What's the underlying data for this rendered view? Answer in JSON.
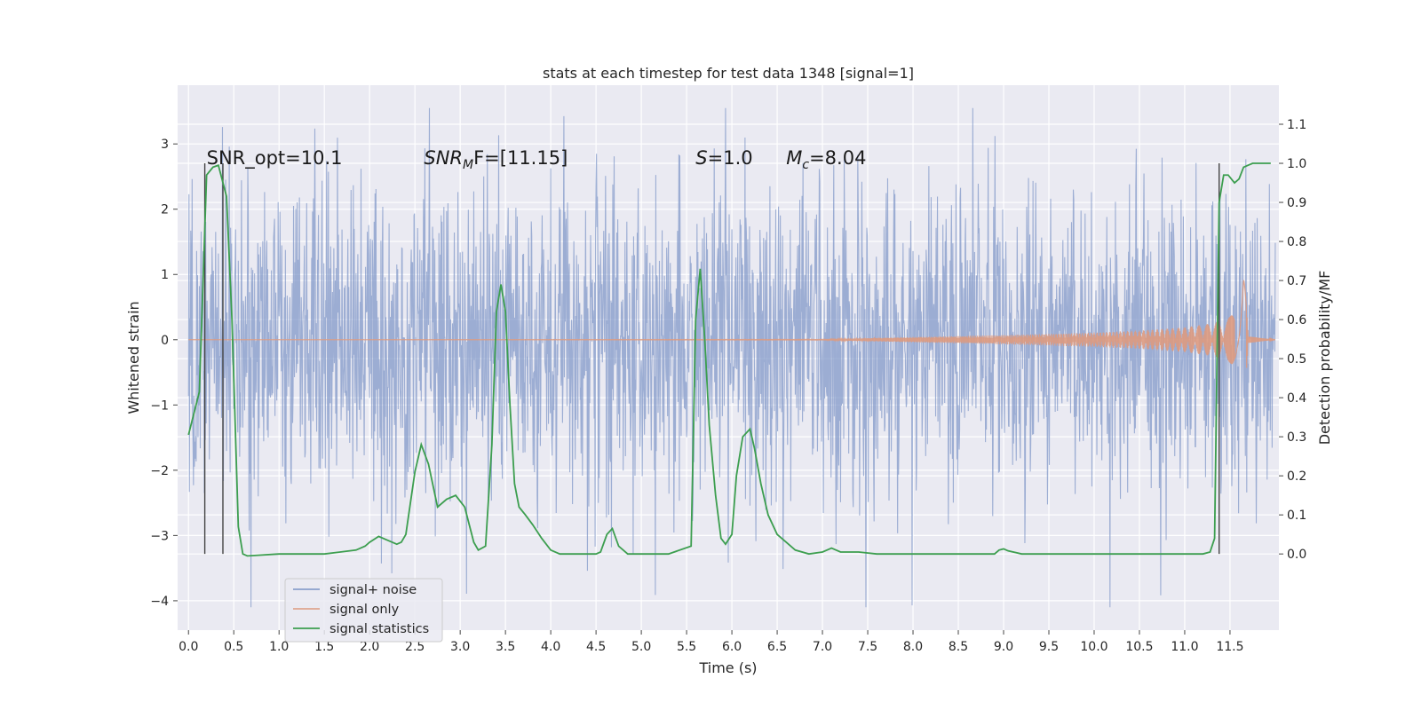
{
  "chart_data": {
    "type": "line",
    "title": "stats at each timestep for test data 1348 [signal=1]",
    "xlabel": "Time (s)",
    "ylabel": "Whitened strain",
    "y2label": "Detection probability/MF",
    "xlim": [
      -0.12,
      12.04
    ],
    "ylim": [
      -4.45,
      3.9
    ],
    "y2lim": [
      -0.195,
      1.2
    ],
    "x_ticks": [
      0.0,
      0.5,
      1.0,
      1.5,
      2.0,
      2.5,
      3.0,
      3.5,
      4.0,
      4.5,
      5.0,
      5.5,
      6.0,
      6.5,
      7.0,
      7.5,
      8.0,
      8.5,
      9.0,
      9.5,
      10.0,
      10.5,
      11.0,
      11.5
    ],
    "x_tick_labels": [
      "0.0",
      "0.5",
      "1.0",
      "1.5",
      "2.0",
      "2.5",
      "3.0",
      "3.5",
      "4.0",
      "4.5",
      "5.0",
      "5.5",
      "6.0",
      "6.5",
      "7.0",
      "7.5",
      "8.0",
      "8.5",
      "9.0",
      "9.5",
      "10.0",
      "10.5",
      "11.0",
      "11.5"
    ],
    "y_ticks": [
      -4,
      -3,
      -2,
      -1,
      0,
      1,
      2,
      3
    ],
    "y_tick_labels": [
      "−4",
      "−3",
      "−2",
      "−1",
      "0",
      "1",
      "2",
      "3"
    ],
    "y2_ticks": [
      0.0,
      0.1,
      0.2,
      0.3,
      0.4,
      0.5,
      0.6,
      0.7,
      0.8,
      0.9,
      1.0,
      1.1
    ],
    "y2_tick_labels": [
      "0.0",
      "0.1",
      "0.2",
      "0.3",
      "0.4",
      "0.5",
      "0.6",
      "0.7",
      "0.8",
      "0.9",
      "1.0",
      "1.1"
    ],
    "grid": true,
    "legend_placement": "lower-left",
    "legend": [
      {
        "label": "signal+ noise",
        "color": "#7b93c6"
      },
      {
        "label": "signal only",
        "color": "#dd9a80"
      },
      {
        "label": "signal statistics",
        "color": "#3c9e4f"
      }
    ],
    "annotations": [
      {
        "text": "SNR_opt=10.1",
        "x": 0.2
      },
      {
        "text": "SNR",
        "sub": "M",
        "rest": "F=[11.15]",
        "x": 2.6
      },
      {
        "text": "S",
        "rest": "=1.0",
        "x": 5.6
      },
      {
        "text": "M",
        "sub": "c",
        "rest": "=8.04",
        "x": 6.6
      }
    ],
    "vertical_markers_x": [
      0.18,
      0.38,
      11.38
    ],
    "series": [
      {
        "name": "signal+ noise",
        "color": "#7b93c6",
        "description_x_range": [
          0.0,
          12.0
        ],
        "typical_envelope": [
          -1.5,
          1.5
        ],
        "max_excursion": [
          -4.1,
          3.55
        ]
      },
      {
        "name": "signal only",
        "color": "#dd9a80",
        "x": [
          0.0,
          7.0,
          8.0,
          9.0,
          10.0,
          10.5,
          11.0,
          11.3,
          11.5,
          11.6,
          11.65,
          11.7,
          12.0
        ],
        "amplitude": [
          0.0,
          0.005,
          0.04,
          0.07,
          0.11,
          0.14,
          0.19,
          0.25,
          0.35,
          0.6,
          1.45,
          0.05,
          0.0
        ]
      },
      {
        "name": "signal statistics",
        "color": "#3c9e4f",
        "axis": "right",
        "x": [
          0.0,
          0.12,
          0.2,
          0.27,
          0.33,
          0.42,
          0.48,
          0.55,
          0.6,
          0.65,
          1.0,
          1.5,
          1.85,
          1.95,
          2.0,
          2.1,
          2.2,
          2.3,
          2.35,
          2.4,
          2.5,
          2.57,
          2.65,
          2.75,
          2.85,
          2.95,
          3.05,
          3.15,
          3.2,
          3.28,
          3.35,
          3.4,
          3.45,
          3.5,
          3.55,
          3.6,
          3.65,
          3.72,
          3.8,
          3.9,
          4.0,
          4.1,
          4.3,
          4.5,
          4.55,
          4.62,
          4.68,
          4.75,
          4.85,
          5.0,
          5.3,
          5.55,
          5.6,
          5.65,
          5.7,
          5.75,
          5.82,
          5.88,
          5.93,
          6.0,
          6.05,
          6.12,
          6.2,
          6.25,
          6.32,
          6.4,
          6.5,
          6.6,
          6.7,
          6.85,
          7.0,
          7.05,
          7.1,
          7.2,
          7.4,
          7.6,
          8.0,
          8.5,
          8.9,
          8.95,
          9.0,
          9.05,
          9.2,
          9.5,
          10.0,
          10.5,
          11.0,
          11.2,
          11.28,
          11.33,
          11.38,
          11.43,
          11.48,
          11.55,
          11.6,
          11.65,
          11.7,
          11.75,
          11.8,
          11.9,
          11.95
        ],
        "values": [
          0.305,
          0.415,
          0.97,
          0.99,
          0.995,
          0.915,
          0.6,
          0.07,
          0.0,
          -0.005,
          0.0,
          0.0,
          0.01,
          0.02,
          0.03,
          0.045,
          0.035,
          0.025,
          0.03,
          0.05,
          0.21,
          0.28,
          0.23,
          0.12,
          0.14,
          0.15,
          0.12,
          0.03,
          0.01,
          0.02,
          0.28,
          0.62,
          0.69,
          0.62,
          0.38,
          0.18,
          0.12,
          0.1,
          0.075,
          0.04,
          0.01,
          0.0,
          0.0,
          0.0,
          0.005,
          0.05,
          0.065,
          0.02,
          0.0,
          0.0,
          0.0,
          0.02,
          0.6,
          0.73,
          0.55,
          0.33,
          0.15,
          0.04,
          0.025,
          0.05,
          0.2,
          0.3,
          0.32,
          0.27,
          0.18,
          0.1,
          0.05,
          0.03,
          0.01,
          0.0,
          0.005,
          0.01,
          0.015,
          0.005,
          0.005,
          0.0,
          0.0,
          0.0,
          0.0,
          0.01,
          0.013,
          0.008,
          0.0,
          0.0,
          0.0,
          0.0,
          0.0,
          0.0,
          0.005,
          0.04,
          0.9,
          0.97,
          0.97,
          0.95,
          0.96,
          0.99,
          0.995,
          1.0,
          1.0,
          1.0,
          1.0
        ]
      }
    ]
  }
}
